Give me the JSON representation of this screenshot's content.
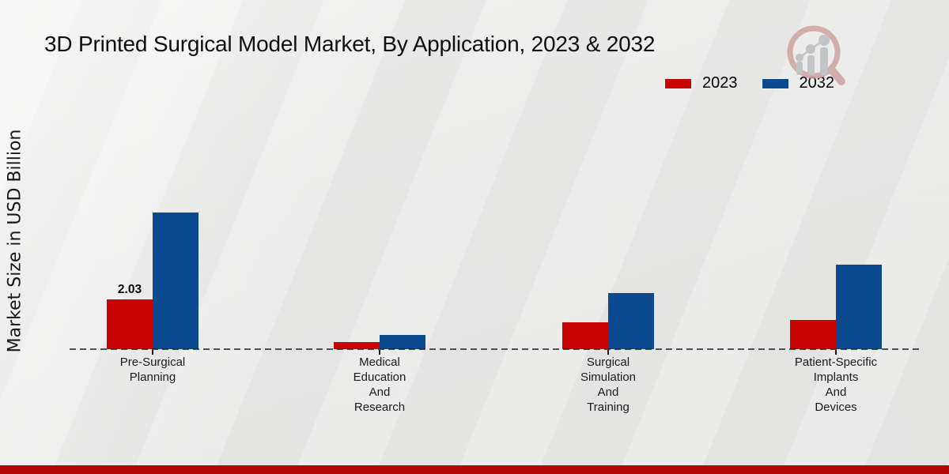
{
  "page": {
    "background_color": "#e9e9e8",
    "footer_bar_color": "#b20505"
  },
  "header": {
    "title": "3D Printed Surgical Model Market, By Application, 2023 & 2032"
  },
  "y_axis": {
    "label": "Market Size in USD Billion"
  },
  "legend": {
    "items": [
      {
        "label": "2023",
        "color": "#c80404"
      },
      {
        "label": "2032",
        "color": "#0b4a8e"
      }
    ]
  },
  "watermark": {
    "icon": "magnifier-growth-chart-logo"
  },
  "chart_data": {
    "type": "bar",
    "title": "3D Printed Surgical Model Market, By Application, 2023 & 2032",
    "xlabel": "",
    "ylabel": "Market Size in USD Billion",
    "unit": "USD Billion",
    "categories": [
      "Pre-Surgical Planning",
      "Medical Education And Research",
      "Surgical Simulation And Training",
      "Patient-Specific Implants And Devices"
    ],
    "category_label_lines": [
      [
        "Pre-Surgical",
        "Planning"
      ],
      [
        "Medical",
        "Education",
        "And",
        "Research"
      ],
      [
        "Surgical",
        "Simulation",
        "And",
        "Training"
      ],
      [
        "Patient-Specific",
        "Implants",
        "And",
        "Devices"
      ]
    ],
    "series": [
      {
        "name": "2023",
        "color": "#c80404",
        "values": [
          2.03,
          0.29,
          1.1,
          1.19
        ]
      },
      {
        "name": "2032",
        "color": "#0b4a8e",
        "values": [
          5.58,
          0.58,
          2.29,
          3.45
        ]
      }
    ],
    "data_labels": [
      {
        "series_index": 0,
        "category_index": 0,
        "text": "2.03"
      }
    ],
    "ylim": [
      0,
      6
    ],
    "grid": false,
    "baseline_style": "dashed",
    "legend_position": "top-right"
  }
}
